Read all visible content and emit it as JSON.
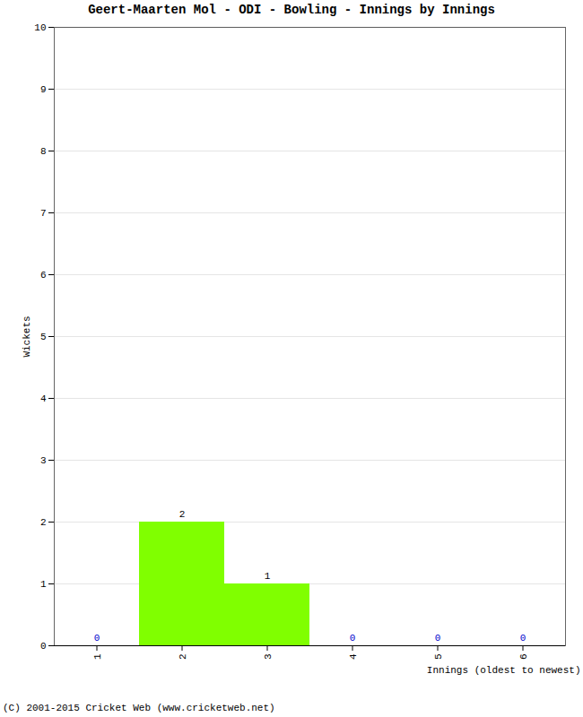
{
  "chart_data": {
    "type": "bar",
    "title": "Geert-Maarten Mol - ODI - Bowling - Innings by Innings",
    "caption": "(C) 2001-2015 Cricket Web (www.cricketweb.net)",
    "x_label": "Innings (oldest to newest)",
    "y_label": "Wickets",
    "categories": [
      "1",
      "2",
      "3",
      "4",
      "5",
      "6"
    ],
    "values": [
      0,
      2,
      1,
      0,
      0,
      0
    ],
    "color": "#80ff00",
    "ylim": [
      0,
      10
    ],
    "yticks": [
      0,
      1,
      2,
      3,
      4,
      5,
      6,
      7,
      8,
      9,
      10
    ],
    "grid": true,
    "data_labels": true
  }
}
